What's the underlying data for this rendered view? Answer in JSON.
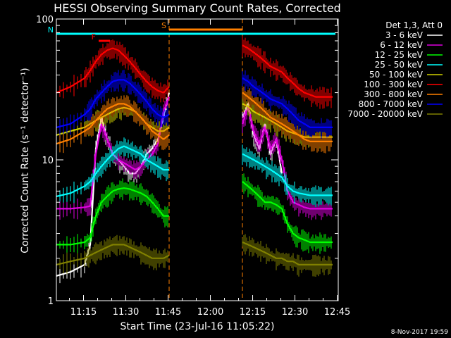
{
  "chart_data": {
    "type": "line",
    "title": "HESSI Observing Summary Count Rates, Corrected",
    "xlabel": "Start Time (23-Jul-16 11:05:22)",
    "ylabel": "Corrected Count Rate (s⁻¹ detector⁻¹)",
    "yscale": "log",
    "ylim": [
      1,
      100
    ],
    "xlim_minutes": [
      0,
      100
    ],
    "x_unit": "minutes after 11:05:22",
    "xticks": [
      {
        "label": "11:15",
        "x": 9.63
      },
      {
        "label": "11:30",
        "x": 24.63
      },
      {
        "label": "11:45",
        "x": 39.63
      },
      {
        "label": "12:00",
        "x": 54.63
      },
      {
        "label": "12:15",
        "x": 69.63
      },
      {
        "label": "12:30",
        "x": 84.63
      },
      {
        "label": "12:45",
        "x": 99.63
      }
    ],
    "yticks": [
      {
        "label": "1",
        "y": 1
      },
      {
        "label": "10",
        "y": 10
      },
      {
        "label": "100",
        "y": 100
      }
    ],
    "legend_title": "Det 1,3, Att 0",
    "legend_position": "right",
    "timestamp": "8-Nov-2017 19:59",
    "gaps": [
      {
        "start": 40,
        "end": 66
      }
    ],
    "series": [
      {
        "name": "3 - 6 keV",
        "color": "#ffffff",
        "segments": [
          {
            "x": [
              0,
              5,
              10,
              12,
              14,
              16,
              18,
              20,
              22,
              24,
              26,
              28,
              30,
              32,
              34,
              36,
              38,
              40
            ],
            "y": [
              1.5,
              1.6,
              1.8,
              2.5,
              12,
              20,
              14,
              11,
              10,
              9,
              8,
              8,
              9,
              11,
              12,
              14,
              20,
              30
            ]
          },
          {
            "x": [
              66,
              68,
              70,
              72,
              74,
              76,
              78,
              80
            ],
            "y": [
              20,
              25,
              15,
              12,
              18,
              11,
              14,
              8
            ]
          }
        ]
      },
      {
        "name": "6 - 12 keV",
        "color": "#e000e0",
        "segments": [
          {
            "x": [
              0,
              5,
              10,
              12,
              14,
              16,
              18,
              20,
              22,
              24,
              26,
              28,
              30,
              32,
              34,
              36,
              38,
              40
            ],
            "y": [
              4.5,
              4.5,
              4.6,
              4.7,
              11,
              18,
              14,
              11,
              10,
              9.5,
              9,
              8.5,
              9,
              10,
              11,
              13,
              22,
              28
            ]
          },
          {
            "x": [
              66,
              68,
              70,
              72,
              74,
              76,
              78,
              80,
              82,
              84,
              86,
              88,
              90,
              92,
              94,
              96,
              98
            ],
            "y": [
              18,
              24,
              16,
              13,
              17,
              12,
              14,
              10,
              6,
              5,
              4.8,
              4.6,
              4.5,
              4.5,
              4.5,
              4.5,
              4.5
            ]
          }
        ]
      },
      {
        "name": "12 - 25 keV",
        "color": "#00ff00",
        "segments": [
          {
            "x": [
              0,
              5,
              10,
              12,
              14,
              16,
              18,
              20,
              22,
              24,
              26,
              28,
              30,
              32,
              34,
              36,
              38,
              40
            ],
            "y": [
              2.5,
              2.5,
              2.6,
              2.8,
              4,
              5,
              5.5,
              6,
              6.2,
              6.3,
              6.2,
              6,
              5.8,
              5.5,
              5,
              4.5,
              4,
              4
            ]
          },
          {
            "x": [
              66,
              68,
              70,
              72,
              74,
              76,
              78,
              80,
              82,
              84,
              86,
              88,
              90,
              92,
              94,
              96,
              98
            ],
            "y": [
              7,
              6.5,
              6,
              5.5,
              5,
              5,
              4.8,
              4.5,
              3.5,
              3,
              2.8,
              2.7,
              2.6,
              2.6,
              2.6,
              2.6,
              2.6
            ]
          }
        ]
      },
      {
        "name": "25 - 50 keV",
        "color": "#00ffff",
        "segments": [
          {
            "x": [
              0,
              5,
              10,
              12,
              14,
              16,
              18,
              20,
              22,
              24,
              26,
              28,
              30,
              32,
              34,
              36,
              38,
              40
            ],
            "y": [
              5.5,
              5.8,
              6.5,
              7,
              8,
              9,
              10,
              11,
              12,
              12.5,
              12,
              11.5,
              11,
              10,
              9.5,
              9,
              8.5,
              8.5
            ]
          },
          {
            "x": [
              66,
              68,
              70,
              72,
              74,
              76,
              78,
              80,
              82,
              84,
              86,
              88,
              90,
              92,
              94,
              96,
              98
            ],
            "y": [
              11,
              10.5,
              10,
              9.5,
              9,
              8.5,
              8,
              7.5,
              6.5,
              6,
              5.8,
              5.7,
              5.6,
              5.6,
              5.6,
              5.6,
              5.6
            ]
          }
        ]
      },
      {
        "name": "50 - 100 keV",
        "color": "#d0d000",
        "segments": [
          {
            "x": [
              0,
              5,
              10,
              12,
              14,
              16,
              18,
              20,
              22,
              24,
              26,
              28,
              30,
              32,
              34,
              36,
              38,
              40
            ],
            "y": [
              15,
              16,
              17,
              18,
              19,
              20,
              21,
              22,
              23,
              23.5,
              23,
              22,
              20,
              18,
              17,
              16,
              16,
              17
            ]
          },
          {
            "x": [
              66,
              68,
              70,
              72,
              74,
              76,
              78,
              80,
              82,
              84,
              86,
              88,
              90,
              92,
              94,
              96,
              98
            ],
            "y": [
              25,
              24,
              22,
              21,
              20,
              19,
              18,
              17,
              16,
              15.5,
              15,
              14.5,
              14.5,
              14.5,
              14.5,
              14.5,
              14.5
            ]
          }
        ]
      },
      {
        "name": "100 - 300 keV",
        "color": "#ff0000",
        "segments": [
          {
            "x": [
              0,
              5,
              10,
              12,
              14,
              16,
              18,
              20,
              22,
              24,
              26,
              28,
              30,
              32,
              34,
              36,
              38,
              40
            ],
            "y": [
              30,
              33,
              38,
              43,
              50,
              56,
              60,
              62,
              60,
              55,
              50,
              45,
              40,
              36,
              33,
              31,
              30,
              33
            ]
          },
          {
            "x": [
              66,
              68,
              70,
              72,
              74,
              76,
              78,
              80,
              82,
              84,
              86,
              88,
              90,
              92,
              94,
              96,
              98
            ],
            "y": [
              65,
              62,
              58,
              54,
              50,
              46,
              44,
              42,
              38,
              35,
              32,
              30,
              29,
              28,
              28,
              28,
              28
            ]
          }
        ]
      },
      {
        "name": "300 - 800 keV",
        "color": "#ff8000",
        "segments": [
          {
            "x": [
              0,
              5,
              10,
              12,
              14,
              16,
              18,
              20,
              22,
              24,
              26,
              28,
              30,
              32,
              34,
              36,
              38,
              40
            ],
            "y": [
              13,
              14,
              16,
              17,
              19,
              21,
              23,
              24,
              25,
              25,
              24,
              22,
              20,
              18,
              16,
              15,
              14,
              15
            ]
          },
          {
            "x": [
              66,
              68,
              70,
              72,
              74,
              76,
              78,
              80,
              82,
              84,
              86,
              88,
              90,
              92,
              94,
              96,
              98
            ],
            "y": [
              30,
              28,
              26,
              24,
              22,
              20,
              19,
              18,
              17,
              16,
              15,
              14,
              13.5,
              13.5,
              13.5,
              13.5,
              13.5
            ]
          }
        ]
      },
      {
        "name": "800 - 7000 keV",
        "color": "#0000ff",
        "segments": [
          {
            "x": [
              0,
              5,
              10,
              12,
              14,
              16,
              18,
              20,
              22,
              24,
              26,
              28,
              30,
              32,
              34,
              36,
              38,
              40
            ],
            "y": [
              17,
              18,
              21,
              23,
              27,
              30,
              33,
              36,
              37,
              37,
              35,
              32,
              29,
              26,
              23,
              21,
              20,
              21
            ]
          },
          {
            "x": [
              66,
              68,
              70,
              72,
              74,
              76,
              78,
              80,
              82,
              84,
              86,
              88,
              90,
              92,
              94,
              96,
              98
            ],
            "y": [
              38,
              36,
              33,
              31,
              29,
              27,
              26,
              25,
              23,
              21,
              19,
              18,
              17,
              17,
              17,
              17,
              17
            ]
          }
        ]
      },
      {
        "name": "7000 - 20000 keV",
        "color": "#808000",
        "segments": [
          {
            "x": [
              0,
              5,
              10,
              12,
              14,
              16,
              18,
              20,
              22,
              24,
              26,
              28,
              30,
              32,
              34,
              36,
              38,
              40
            ],
            "y": [
              1.8,
              1.9,
              2.0,
              2.1,
              2.2,
              2.3,
              2.4,
              2.5,
              2.5,
              2.5,
              2.4,
              2.3,
              2.2,
              2.1,
              2.0,
              2.0,
              2.0,
              2.1
            ]
          },
          {
            "x": [
              66,
              68,
              70,
              72,
              74,
              76,
              78,
              80,
              82,
              84,
              86,
              88,
              90,
              92,
              94,
              96,
              98
            ],
            "y": [
              2.6,
              2.5,
              2.4,
              2.3,
              2.2,
              2.1,
              2.0,
              2.0,
              1.9,
              1.9,
              1.8,
              1.8,
              1.8,
              1.8,
              1.8,
              1.8,
              1.8
            ]
          }
        ]
      }
    ],
    "markers": [
      {
        "label": "N",
        "color": "#00ffff",
        "x_start": 0,
        "x_end": 99
      },
      {
        "label": "F",
        "color": "#ff0000",
        "x_start": 15,
        "x_end": 19
      },
      {
        "label": "S",
        "color": "#ff8000",
        "x_start": 40,
        "x_end": 66
      }
    ]
  }
}
